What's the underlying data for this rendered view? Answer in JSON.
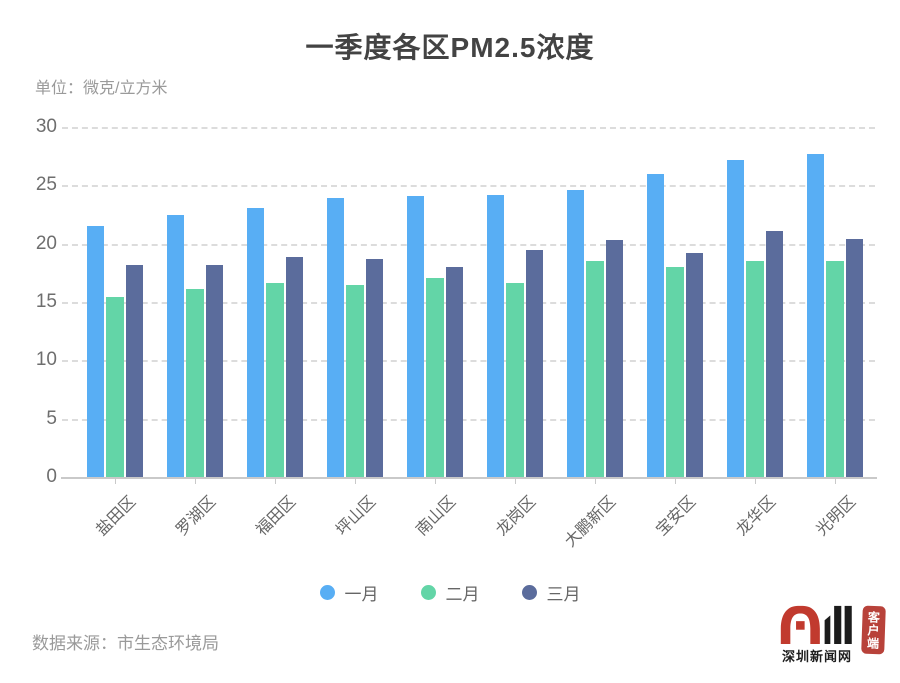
{
  "header": {
    "title": "一季度各区PM2.5浓度",
    "unit_label": "单位：微克/立方米"
  },
  "footer": {
    "source": "数据来源：市生态环境局"
  },
  "logo": {
    "site_name": "深圳新闻网",
    "badge": "客户端",
    "mark": "见圳",
    "brand_red": "#c13a2e",
    "brand_black": "#1c1c1c"
  },
  "chart_data": {
    "type": "bar",
    "title": "一季度各区PM2.5浓度",
    "unit": "微克/立方米",
    "categories": [
      "盐田区",
      "罗湖区",
      "福田区",
      "坪山区",
      "南山区",
      "龙岗区",
      "大鹏新区",
      "宝安区",
      "龙华区",
      "光明区"
    ],
    "series": [
      {
        "name": "一月",
        "color": "#58aef4",
        "values": [
          21.5,
          22.5,
          23.1,
          23.9,
          24.1,
          24.2,
          24.6,
          26.0,
          27.2,
          27.7
        ]
      },
      {
        "name": "二月",
        "color": "#63d5a7",
        "values": [
          15.4,
          16.1,
          16.6,
          16.5,
          17.1,
          16.6,
          18.5,
          18.0,
          18.5,
          18.5
        ]
      },
      {
        "name": "三月",
        "color": "#5b6c9c",
        "values": [
          18.2,
          18.2,
          18.9,
          18.7,
          18.0,
          19.5,
          20.3,
          19.2,
          21.1,
          20.4
        ]
      }
    ],
    "ylim": [
      0,
      30
    ],
    "yticks": [
      0,
      5,
      10,
      15,
      20,
      25,
      30
    ],
    "grid": "horizontal-dashed",
    "legend_position": "bottom",
    "xlabel": "",
    "ylabel": ""
  }
}
